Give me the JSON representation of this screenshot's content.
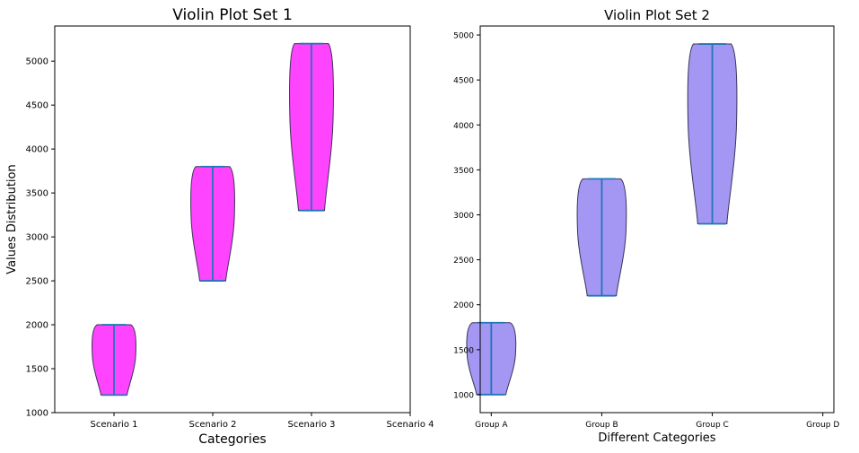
{
  "chart_data": [
    {
      "type": "violin",
      "title": "Violin Plot Set 1",
      "xlabel": "Categories",
      "ylabel": "Values Distribution",
      "categories": [
        "Scenario 1",
        "Scenario 2",
        "Scenario 3",
        "Scenario 4"
      ],
      "ylim": [
        1000,
        5400
      ],
      "yticks": [
        1000,
        1500,
        2000,
        2500,
        3000,
        3500,
        4000,
        4500,
        5000
      ],
      "fill_color": "#ff44ff",
      "line_color": "#1f77b4",
      "series": [
        {
          "category": "Scenario 1",
          "min": 1200,
          "max": 2000
        },
        {
          "category": "Scenario 2",
          "min": 2500,
          "max": 3800
        },
        {
          "category": "Scenario 3",
          "min": 3300,
          "max": 5200
        }
      ]
    },
    {
      "type": "violin",
      "title": "Violin Plot Set 2",
      "xlabel": "Different Categories",
      "ylabel": "",
      "categories": [
        "Group A",
        "Group B",
        "Group C",
        "Group D"
      ],
      "ylim": [
        800,
        5100
      ],
      "yticks": [
        1000,
        1500,
        2000,
        2500,
        3000,
        3500,
        4000,
        4500,
        5000
      ],
      "fill_color": "#a497f4",
      "line_color": "#1f77b4",
      "series": [
        {
          "category": "Group A",
          "min": 1000,
          "max": 1800
        },
        {
          "category": "Group B",
          "min": 2100,
          "max": 3400
        },
        {
          "category": "Group C",
          "min": 2900,
          "max": 4900
        }
      ]
    }
  ]
}
